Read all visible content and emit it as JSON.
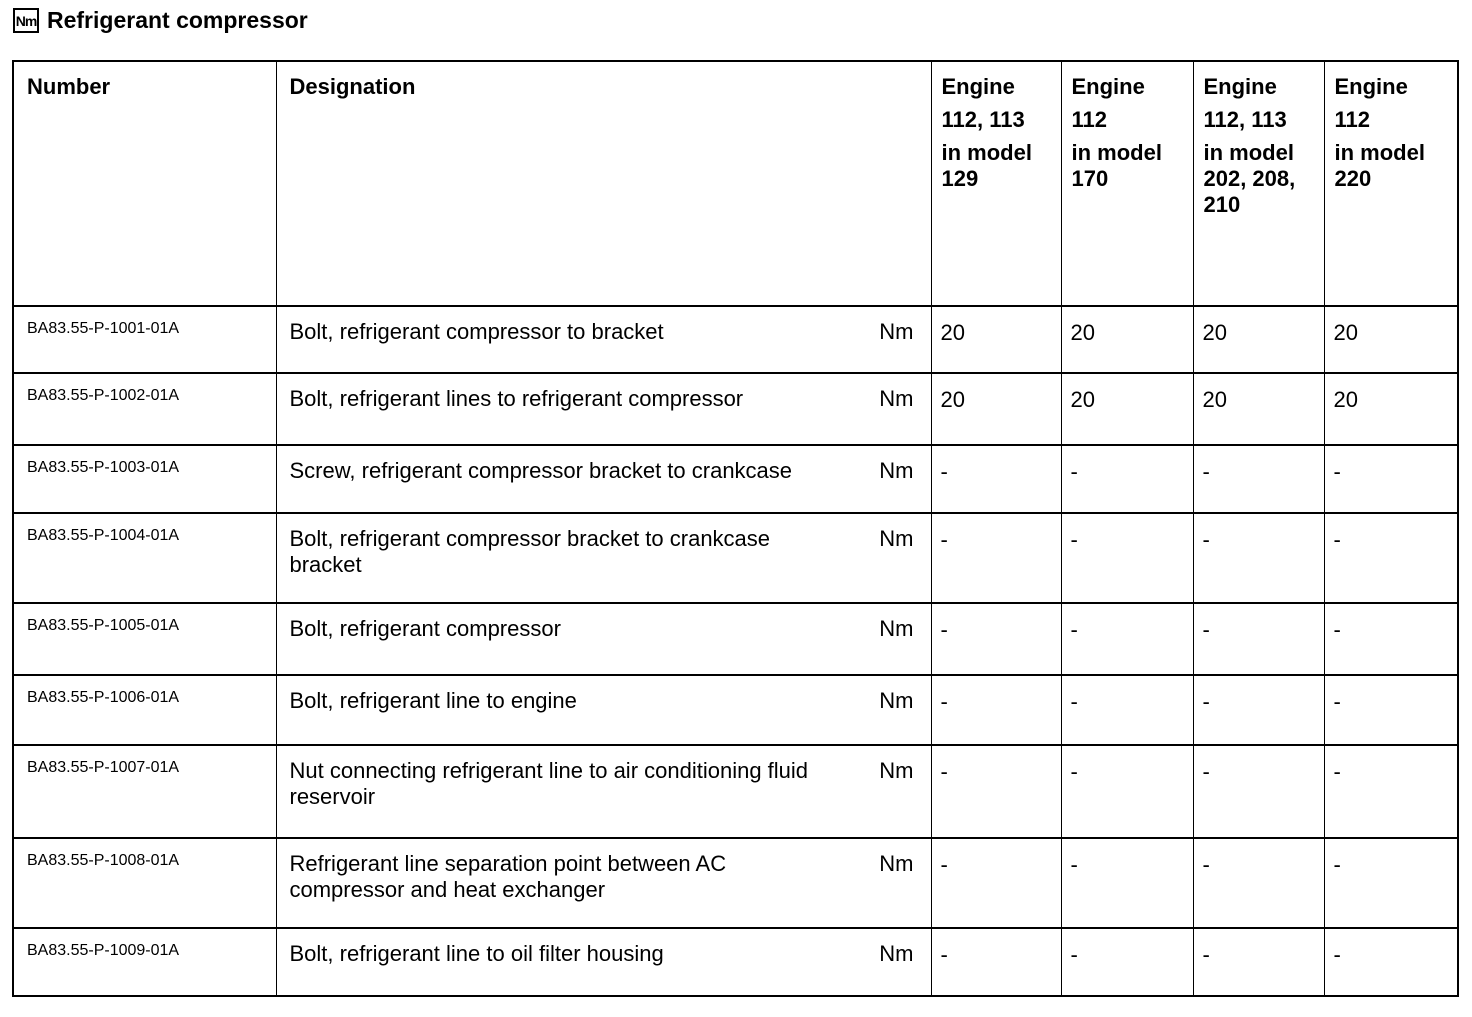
{
  "page": {
    "title_icon": "Nm",
    "title": "Refrigerant compressor"
  },
  "colors": {
    "text": "#000000",
    "background": "#ffffff",
    "border": "#000000"
  },
  "table": {
    "headers": {
      "number": "Number",
      "designation": "Designation"
    },
    "engine_columns": [
      {
        "line1": "Engine",
        "line2": "112, 113",
        "line3": "in model 129"
      },
      {
        "line1": "Engine",
        "line2": "112",
        "line3": "in model 170"
      },
      {
        "line1": "Engine",
        "line2": "112, 113",
        "line3": "in model 202, 208, 210"
      },
      {
        "line1": "Engine",
        "line2": "112",
        "line3": "in model 220"
      }
    ],
    "rows": [
      {
        "number": "BA83.55-P-1001-01A",
        "designation": "Bolt, refrigerant compressor to bracket",
        "unit": "Nm",
        "values": [
          "20",
          "20",
          "20",
          "20"
        ]
      },
      {
        "number": "BA83.55-P-1002-01A",
        "designation": "Bolt, refrigerant lines to refrigerant compressor",
        "unit": "Nm",
        "values": [
          "20",
          "20",
          "20",
          "20"
        ]
      },
      {
        "number": "BA83.55-P-1003-01A",
        "designation": "Screw, refrigerant compressor bracket to crankcase",
        "unit": "Nm",
        "values": [
          "-",
          "-",
          "-",
          "-"
        ]
      },
      {
        "number": "BA83.55-P-1004-01A",
        "designation": "Bolt, refrigerant compressor bracket to crankcase bracket",
        "unit": "Nm",
        "values": [
          "-",
          "-",
          "-",
          "-"
        ]
      },
      {
        "number": "BA83.55-P-1005-01A",
        "designation": "Bolt, refrigerant compressor",
        "unit": "Nm",
        "values": [
          "-",
          "-",
          "-",
          "-"
        ]
      },
      {
        "number": "BA83.55-P-1006-01A",
        "designation": "Bolt, refrigerant line to engine",
        "unit": "Nm",
        "values": [
          "-",
          "-",
          "-",
          "-"
        ]
      },
      {
        "number": "BA83.55-P-1007-01A",
        "designation": "Nut connecting refrigerant line to air conditioning fluid reservoir",
        "unit": "Nm",
        "values": [
          "-",
          "-",
          "-",
          "-"
        ]
      },
      {
        "number": "BA83.55-P-1008-01A",
        "designation": "Refrigerant line separation point between AC compressor and heat exchanger",
        "unit": "Nm",
        "values": [
          "-",
          "-",
          "-",
          "-"
        ]
      },
      {
        "number": "BA83.55-P-1009-01A",
        "designation": "Bolt, refrigerant line to oil filter housing",
        "unit": "Nm",
        "values": [
          "-",
          "-",
          "-",
          "-"
        ]
      }
    ]
  }
}
